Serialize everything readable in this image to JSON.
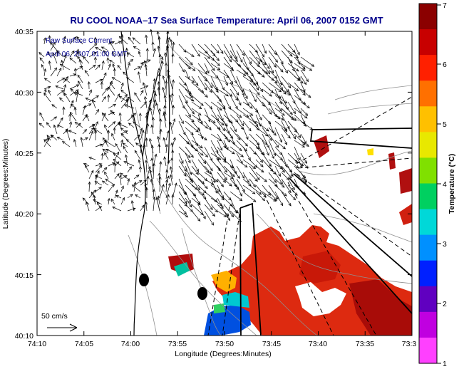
{
  "title": "RU COOL  NOAA–17  Sea Surface Temperature:  April 06, 2007 0152 GMT",
  "legend": {
    "line1": "Raw Surface Current",
    "line2": "April 06, 2007 01:00 GMT",
    "scale_label": "50 cm/s"
  },
  "axes": {
    "xlabel": "Longitude (Degrees:Minutes)",
    "ylabel": "Latitude (Degrees:Minutes)",
    "x_ticks": [
      "74:10",
      "74:05",
      "74:00",
      "73:55",
      "73:50",
      "73:45",
      "73:40",
      "73:35",
      "73:3"
    ],
    "y_ticks": [
      "40:35",
      "40:30",
      "40:25",
      "40:20",
      "40:15",
      "40:10"
    ]
  },
  "colorbar": {
    "label": "Temperature (°C)",
    "ticks": [
      "7",
      "6",
      "5",
      "4",
      "3",
      "2",
      "1"
    ],
    "colors": [
      "#8b0000",
      "#c80000",
      "#ff2000",
      "#ff7000",
      "#ffc000",
      "#e8e800",
      "#80e000",
      "#00d060",
      "#00d8d8",
      "#0090ff",
      "#0020ff",
      "#6000c0",
      "#c000e0",
      "#ff40ff"
    ]
  },
  "colors": {
    "title": "#00008b",
    "land_outline": "#000000",
    "contour": "#808080",
    "sst_warm": "#e02000"
  }
}
